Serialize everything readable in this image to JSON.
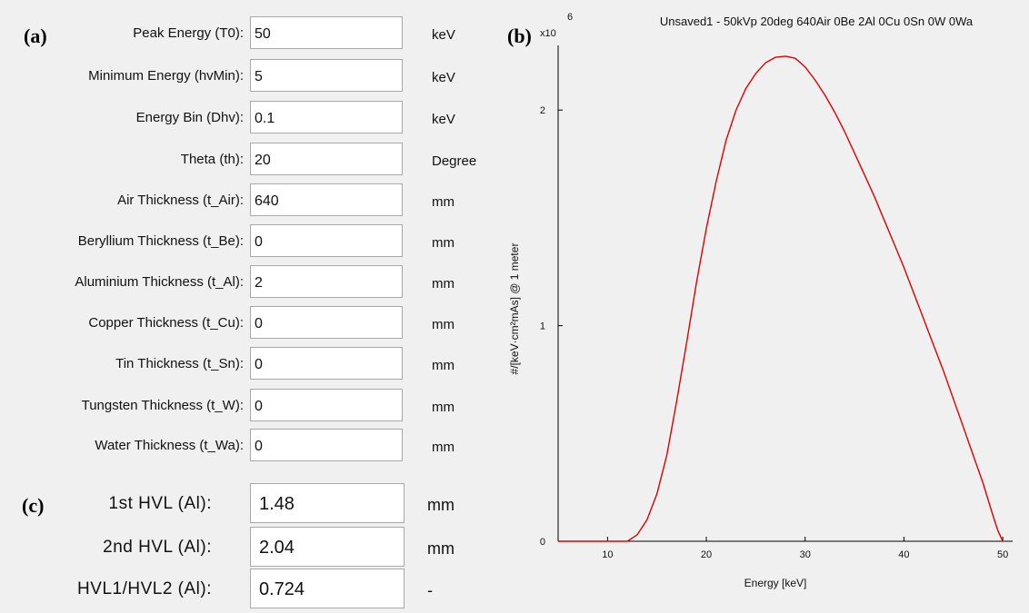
{
  "panel_labels": {
    "a": "(a)",
    "b": "(b)",
    "c": "(c)"
  },
  "parameters": [
    {
      "label": "Peak Energy (T0):",
      "value": "50",
      "unit": "keV"
    },
    {
      "label": "Minimum Energy (hvMin):",
      "value": "5",
      "unit": "keV"
    },
    {
      "label": "Energy Bin (Dhv):",
      "value": "0.1",
      "unit": "keV"
    },
    {
      "label": "Theta (th):",
      "value": "20",
      "unit": "Degree"
    },
    {
      "label": "Air Thickness (t_Air):",
      "value": "640",
      "unit": "mm"
    },
    {
      "label": "Beryllium Thickness (t_Be):",
      "value": "0",
      "unit": "mm"
    },
    {
      "label": "Aluminium Thickness (t_Al):",
      "value": "2",
      "unit": "mm"
    },
    {
      "label": "Copper Thickness (t_Cu):",
      "value": "0",
      "unit": "mm"
    },
    {
      "label": "Tin Thickness (t_Sn):",
      "value": "0",
      "unit": "mm"
    },
    {
      "label": "Tungsten Thickness (t_W):",
      "value": "0",
      "unit": "mm"
    },
    {
      "label": "Water Thickness (t_Wa):",
      "value": "0",
      "unit": "mm"
    }
  ],
  "hvl": [
    {
      "label": "1st HVL (Al):",
      "value": "1.48",
      "unit": "mm"
    },
    {
      "label": "2nd HVL (Al):",
      "value": "2.04",
      "unit": "mm"
    },
    {
      "label": "HVL1/HVL2 (Al):",
      "value": "0.724",
      "unit": "-"
    }
  ],
  "chart_data": {
    "type": "line",
    "title": "Unsaved1 - 50kVp 20deg 640Air 0Be 2Al 0Cu 0Sn 0W 0Wa",
    "xlabel": "Energy [keV]",
    "ylabel": "#/[keV·cm²mAs] @ 1 meter",
    "y_multiplier": "x10",
    "y_multiplier_exponent": "6",
    "xlim": [
      5,
      51
    ],
    "ylim": [
      0,
      2.3
    ],
    "xticks": [
      10,
      20,
      30,
      40,
      50
    ],
    "yticks": [
      0,
      1,
      2
    ],
    "grid": false,
    "line_color": "#e00000",
    "series": [
      {
        "x": [
          5,
          10,
          12,
          13,
          14,
          15,
          16,
          17,
          18,
          19,
          20,
          21,
          22,
          23,
          24,
          25,
          26,
          27,
          28,
          29,
          30,
          31,
          32,
          33,
          34,
          35,
          36,
          37,
          38,
          39,
          40,
          41,
          42,
          43,
          44,
          45,
          46,
          47,
          48,
          49,
          49.5,
          50
        ],
        "y": [
          0,
          0,
          0,
          0.03,
          0.1,
          0.22,
          0.4,
          0.65,
          0.92,
          1.2,
          1.45,
          1.67,
          1.86,
          2.0,
          2.1,
          2.17,
          2.22,
          2.245,
          2.25,
          2.24,
          2.2,
          2.14,
          2.07,
          1.99,
          1.9,
          1.8,
          1.7,
          1.6,
          1.49,
          1.38,
          1.27,
          1.15,
          1.03,
          0.91,
          0.79,
          0.66,
          0.53,
          0.4,
          0.27,
          0.12,
          0.05,
          0
        ]
      }
    ]
  }
}
